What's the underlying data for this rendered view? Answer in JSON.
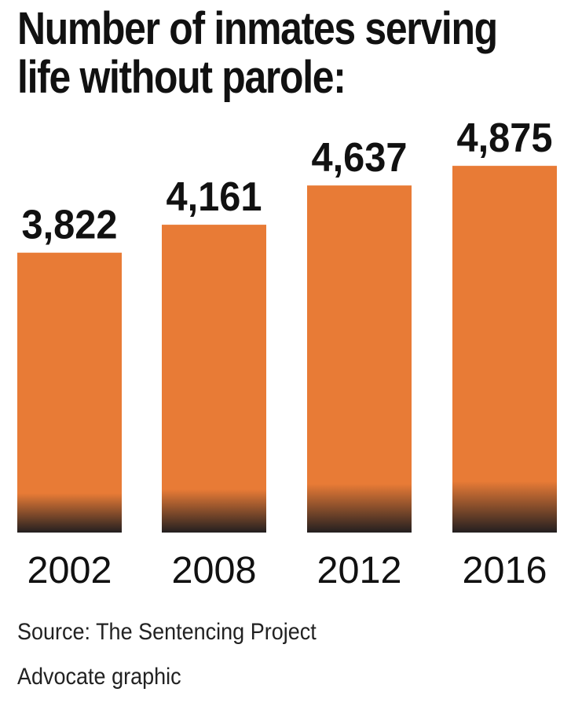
{
  "chart_data": {
    "type": "bar",
    "title_lines": [
      "Number of inmates serving",
      "life without parole:"
    ],
    "categories": [
      "2002",
      "2008",
      "2012",
      "2016"
    ],
    "values": [
      3822,
      4161,
      4637,
      4875
    ],
    "value_labels": [
      "3,822",
      "4,161",
      "4,637",
      "4,875"
    ],
    "xlabel": "",
    "ylabel": "",
    "grid": false,
    "legend": "none",
    "bar_color": "#e87b36",
    "bar_base_color": "#231f20"
  },
  "source": "Source: The Sentencing Project",
  "credit": "Advocate graphic"
}
